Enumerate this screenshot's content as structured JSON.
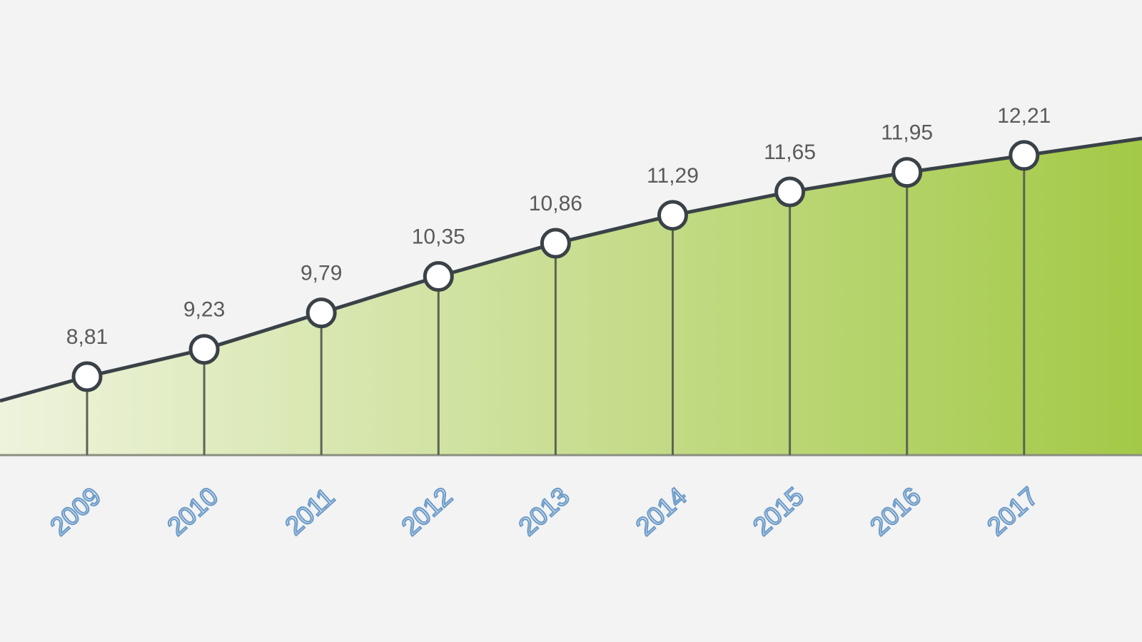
{
  "chart_data": {
    "type": "area",
    "categories": [
      "2009",
      "2010",
      "2011",
      "2012",
      "2013",
      "2014",
      "2015",
      "2016",
      "2017"
    ],
    "values": [
      8.81,
      9.23,
      9.79,
      10.35,
      10.86,
      11.29,
      11.65,
      11.95,
      12.21
    ],
    "value_labels": [
      "8,81",
      "9,23",
      "9,79",
      "10,35",
      "10,86",
      "11,29",
      "11,65",
      "11,95",
      "12,21"
    ],
    "title": "",
    "xlabel": "",
    "ylabel": "",
    "grid": false,
    "colors": {
      "fill_start": "#eef3dc",
      "fill_end": "#a3c947",
      "line": "#3a4248",
      "year_label": "#6d9cc9",
      "value_label": "#5a5a5a",
      "background": "#f3f3f3"
    }
  }
}
